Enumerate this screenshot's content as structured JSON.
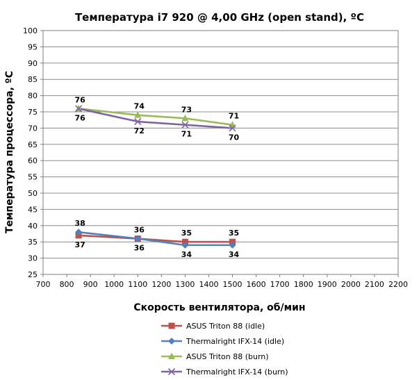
{
  "chart_data": {
    "type": "line",
    "title": "Температура i7 920 @ 4,00 GHz (open stand), ºС",
    "xlabel": "Скорость вентилятора, об/мин",
    "ylabel": "Температура процессора, ºС",
    "xlim": [
      700,
      2200
    ],
    "ylim": [
      25,
      100
    ],
    "xticks": [
      700,
      800,
      900,
      1000,
      1100,
      1200,
      1300,
      1400,
      1500,
      1600,
      1700,
      1800,
      1900,
      2000,
      2100,
      2200
    ],
    "yticks": [
      25,
      30,
      35,
      40,
      45,
      50,
      55,
      60,
      65,
      70,
      75,
      80,
      85,
      90,
      95,
      100
    ],
    "grid": true,
    "legend_position": "bottom",
    "series": [
      {
        "name": "ASUS Triton 88 (idle)",
        "color": "#c0504d",
        "marker": "square",
        "x": [
          850,
          1100,
          1300,
          1500
        ],
        "values": [
          37,
          36,
          35,
          35
        ],
        "label_position": [
          "below",
          "above",
          "above",
          "above"
        ]
      },
      {
        "name": "Thermalright IFX-14 (idle)",
        "color": "#4f81bd",
        "marker": "diamond",
        "x": [
          850,
          1100,
          1300,
          1500
        ],
        "values": [
          38,
          36,
          34,
          34
        ],
        "label_position": [
          "above",
          "below",
          "below",
          "below"
        ]
      },
      {
        "name": "ASUS Triton 88 (burn)",
        "color": "#9bbb59",
        "marker": "triangle",
        "x": [
          850,
          1100,
          1300,
          1500
        ],
        "values": [
          76,
          74,
          73,
          71
        ],
        "label_position": [
          "above",
          "above",
          "above",
          "above"
        ]
      },
      {
        "name": "Thermalright IFX-14 (burn)",
        "color": "#8064a2",
        "marker": "x",
        "x": [
          850,
          1100,
          1300,
          1500
        ],
        "values": [
          76,
          72,
          71,
          70
        ],
        "label_position": [
          "below",
          "below",
          "below",
          "below"
        ]
      }
    ]
  }
}
